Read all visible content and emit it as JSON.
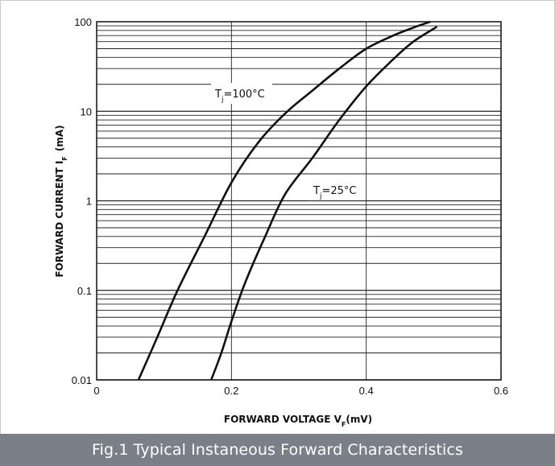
{
  "caption": "Fig.1 Typical Instaneous Forward Characteristics",
  "chart_data": {
    "type": "line",
    "title": "",
    "xlabel_main": "FORWARD VOLTAGE V",
    "xlabel_sub": "F",
    "xlabel_unit": "(mV)",
    "ylabel_main": "FORWARD CURRENT I",
    "ylabel_sub": "F",
    "ylabel_unit": "(mA)",
    "xlim": [
      0,
      0.6
    ],
    "ylim": [
      0.01,
      100
    ],
    "yscale": "log",
    "grid": true,
    "x_ticks": [
      {
        "value": 0,
        "label": "0"
      },
      {
        "value": 0.2,
        "label": "0.2"
      },
      {
        "value": 0.4,
        "label": "0.4"
      },
      {
        "value": 0.6,
        "label": "0.6"
      }
    ],
    "y_ticks": [
      {
        "value": 0.01,
        "label": "0.01"
      },
      {
        "value": 0.1,
        "label": "0.1"
      },
      {
        "value": 1,
        "label": "1"
      },
      {
        "value": 10,
        "label": "10"
      },
      {
        "value": 100,
        "label": "100"
      }
    ],
    "series": [
      {
        "name": "T",
        "name_sub": "j",
        "name_suffix": "=100°C",
        "points": [
          [
            0.062,
            0.01
          ],
          [
            0.09,
            0.03
          ],
          [
            0.12,
            0.1
          ],
          [
            0.16,
            0.4
          ],
          [
            0.2,
            1.6
          ],
          [
            0.24,
            4.5
          ],
          [
            0.28,
            9.5
          ],
          [
            0.32,
            17
          ],
          [
            0.36,
            30
          ],
          [
            0.4,
            50
          ],
          [
            0.44,
            70
          ],
          [
            0.47,
            86
          ],
          [
            0.495,
            100
          ]
        ]
      },
      {
        "name": "T",
        "name_sub": "j",
        "name_suffix": "=25°C",
        "points": [
          [
            0.17,
            0.01
          ],
          [
            0.185,
            0.02
          ],
          [
            0.2,
            0.045
          ],
          [
            0.22,
            0.12
          ],
          [
            0.25,
            0.4
          ],
          [
            0.28,
            1.2
          ],
          [
            0.32,
            3
          ],
          [
            0.36,
            8
          ],
          [
            0.4,
            19
          ],
          [
            0.44,
            38
          ],
          [
            0.47,
            60
          ],
          [
            0.505,
            88
          ]
        ]
      }
    ]
  }
}
